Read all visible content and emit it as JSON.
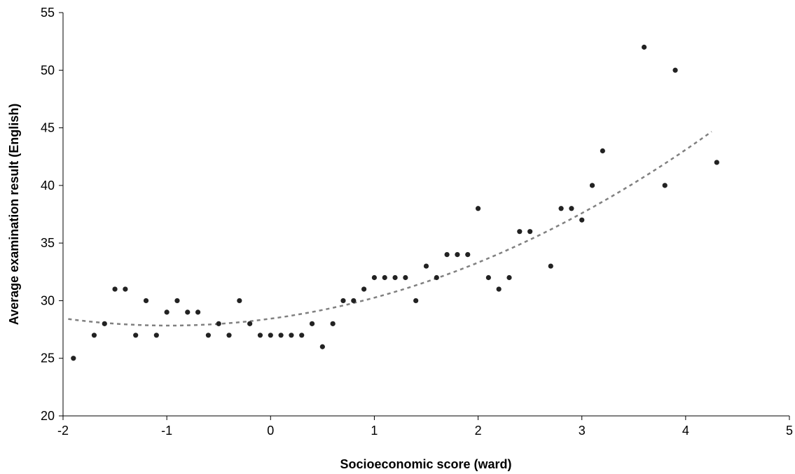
{
  "chart_data": {
    "type": "scatter",
    "title": "",
    "xlabel": "Socioeconomic score (ward)",
    "ylabel": "Average examination result (English)",
    "xlim": [
      -2,
      5
    ],
    "ylim": [
      20,
      55
    ],
    "xticks": [
      "-2",
      "-1",
      "0",
      "1",
      "2",
      "3",
      "4",
      "5"
    ],
    "yticks": [
      "20",
      "25",
      "30",
      "35",
      "40",
      "45",
      "50",
      "55"
    ],
    "grid": false,
    "legend": "none",
    "point_color": "#222222",
    "trendline_color": "#808080",
    "series": [
      {
        "values": [
          {
            "x": -1.9,
            "y": 25
          },
          {
            "x": -1.7,
            "y": 27
          },
          {
            "x": -1.6,
            "y": 28
          },
          {
            "x": -1.5,
            "y": 31
          },
          {
            "x": -1.4,
            "y": 31
          },
          {
            "x": -1.3,
            "y": 27
          },
          {
            "x": -1.2,
            "y": 30
          },
          {
            "x": -1.1,
            "y": 27
          },
          {
            "x": -1.0,
            "y": 29
          },
          {
            "x": -0.9,
            "y": 30
          },
          {
            "x": -0.8,
            "y": 29
          },
          {
            "x": -0.7,
            "y": 29
          },
          {
            "x": -0.6,
            "y": 27
          },
          {
            "x": -0.5,
            "y": 28
          },
          {
            "x": -0.4,
            "y": 27
          },
          {
            "x": -0.3,
            "y": 30
          },
          {
            "x": -0.2,
            "y": 28
          },
          {
            "x": -0.1,
            "y": 27
          },
          {
            "x": 0.0,
            "y": 27
          },
          {
            "x": 0.1,
            "y": 27
          },
          {
            "x": 0.2,
            "y": 27
          },
          {
            "x": 0.3,
            "y": 27
          },
          {
            "x": 0.4,
            "y": 28
          },
          {
            "x": 0.5,
            "y": 26
          },
          {
            "x": 0.6,
            "y": 28
          },
          {
            "x": 0.7,
            "y": 30
          },
          {
            "x": 0.8,
            "y": 30
          },
          {
            "x": 0.9,
            "y": 31
          },
          {
            "x": 1.0,
            "y": 32
          },
          {
            "x": 1.1,
            "y": 32
          },
          {
            "x": 1.2,
            "y": 32
          },
          {
            "x": 1.3,
            "y": 32
          },
          {
            "x": 1.4,
            "y": 30
          },
          {
            "x": 1.5,
            "y": 33
          },
          {
            "x": 1.6,
            "y": 32
          },
          {
            "x": 1.7,
            "y": 34
          },
          {
            "x": 1.8,
            "y": 34
          },
          {
            "x": 1.9,
            "y": 34
          },
          {
            "x": 2.0,
            "y": 38
          },
          {
            "x": 2.1,
            "y": 32
          },
          {
            "x": 2.2,
            "y": 31
          },
          {
            "x": 2.3,
            "y": 32
          },
          {
            "x": 2.4,
            "y": 36
          },
          {
            "x": 2.5,
            "y": 36
          },
          {
            "x": 2.7,
            "y": 33
          },
          {
            "x": 2.8,
            "y": 38
          },
          {
            "x": 2.9,
            "y": 38
          },
          {
            "x": 3.0,
            "y": 37
          },
          {
            "x": 3.1,
            "y": 40
          },
          {
            "x": 3.2,
            "y": 43
          },
          {
            "x": 3.6,
            "y": 52
          },
          {
            "x": 3.8,
            "y": 40
          },
          {
            "x": 3.9,
            "y": 50
          },
          {
            "x": 4.3,
            "y": 42
          }
        ]
      }
    ],
    "trendline": {
      "type": "polynomial-2",
      "x_range": [
        -1.95,
        4.25
      ],
      "points": [
        {
          "x": -1.95,
          "y": 28.4
        },
        {
          "x": -1.0,
          "y": 27.8
        },
        {
          "x": 0.0,
          "y": 28.4
        },
        {
          "x": 1.0,
          "y": 30.5
        },
        {
          "x": 2.0,
          "y": 33.3
        },
        {
          "x": 3.0,
          "y": 37.3
        },
        {
          "x": 3.5,
          "y": 40.2
        },
        {
          "x": 4.25,
          "y": 44.8
        }
      ]
    }
  }
}
